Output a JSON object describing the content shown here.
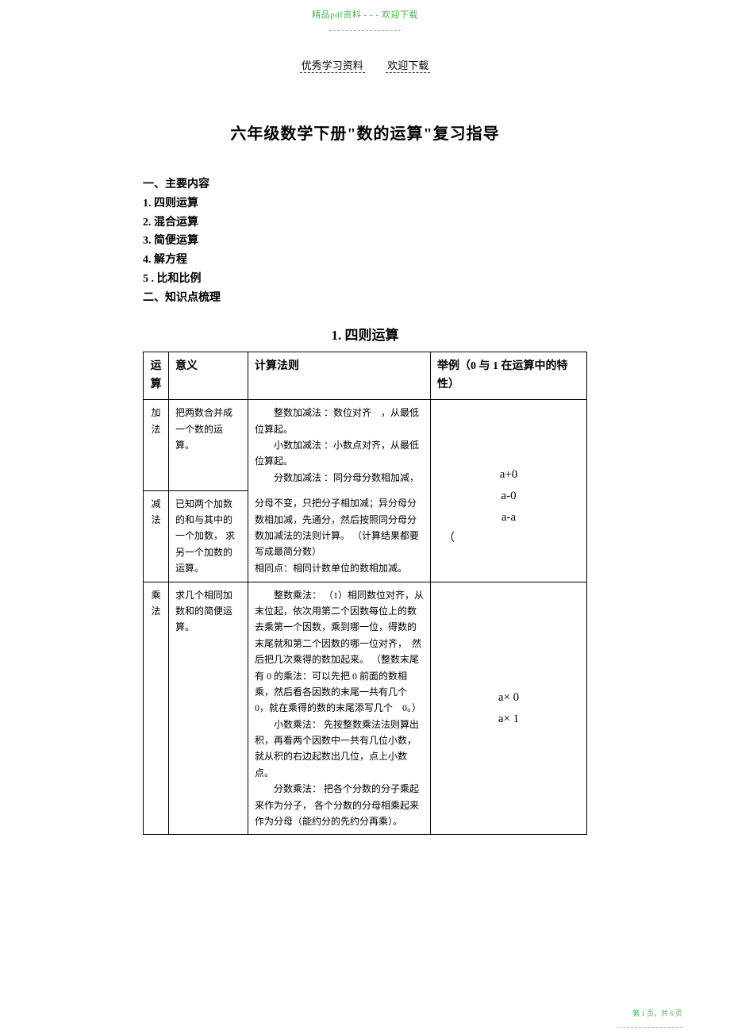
{
  "watermark_top": "精品pdf资料 - - - 欢迎下载",
  "header_left": "优秀学习资料",
  "header_right": "欢迎下载",
  "page_title": "六年级数学下册\"数的运算\"复习指导",
  "outline": {
    "h1": "一、主要内容",
    "items": [
      "1. 四则运算",
      "2. 混合运算",
      "3. 简便运算",
      "4. 解方程",
      "5 . 比和比例"
    ],
    "h2": "二、知识点梳理",
    "section1": "1. 四则运算"
  },
  "table": {
    "headers": {
      "op": "运算",
      "meaning": "意义",
      "rule": "计算法则",
      "examples": "举例（0 与 1 在运算中的特性）"
    },
    "rows": [
      {
        "op": "加法",
        "meaning": "把两数合并成一个数的运算。",
        "rule": "　　整数加减法 ：数位对齐　，从最低位算起。\n　　小数加减法 ：小数点对齐，从最低位算起。\n　　分数加减法 ：同分母分数相加减，"
      },
      {
        "op": "减法",
        "meaning": "已知两个加数的和与其中的一个加数， 求另一个加数的运算。",
        "rule": "分母不变，只把分子相加减；异分母分数相加减，先通分，然后按照同分母分数加减法的法则计算。 （计算结果都要写成最简分数）\n相同点：相同计数单位的数相加减。"
      },
      {
        "op": "乘法",
        "meaning": "求几个相同加数和的简便运算。",
        "rule": "　　整数乘法： （1）相同数位对齐，从末位起，依次用第二个因数每位上的数去乘第一个因数，乘到哪一位，得数的末尾就和第二个因数的哪一位对齐，　然后把几次乘得的数加起来。 （整数末尾有 0 的乘法：可以先把 0 前面的数相乘，然后看各因数的末尾一共有几个　0，就在乘得的数的末尾添写几个　0。）\n　　小数乘法： 先按整数乘法法则算出积，再看两个因数中一共有几位小数，就从积的右边起数出几位，点上小数点。\n　　分数乘法： 把各个分数的分子乘起来作为分子， 各个分数的分母相乘起来作为分母（能约分的先约分再乘）。"
      }
    ],
    "examples_block1": {
      "line1": "a+0",
      "line2": "a-0",
      "line3": "a-a",
      "paren": "（"
    },
    "examples_block2": {
      "line1": "a× 0",
      "line2": "a× 1"
    }
  },
  "footer": "第 1 页，共 6 页"
}
